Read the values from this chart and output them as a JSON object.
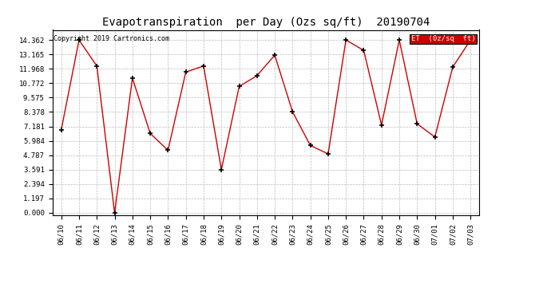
{
  "title": "Evapotranspiration  per Day (Ozs sq/ft)  20190704",
  "copyright": "Copyright 2019 Cartronics.com",
  "legend_label": "ET  (0z/sq  ft)",
  "legend_bg": "#cc0000",
  "legend_text_color": "#ffffff",
  "dates": [
    "06/10",
    "06/11",
    "06/12",
    "06/13",
    "06/14",
    "06/15",
    "06/16",
    "06/17",
    "06/18",
    "06/19",
    "06/20",
    "06/21",
    "06/22",
    "06/23",
    "06/24",
    "06/25",
    "06/26",
    "06/27",
    "06/28",
    "06/29",
    "06/30",
    "07/01",
    "07/02",
    "07/03"
  ],
  "values": [
    6.9,
    14.362,
    12.2,
    0.0,
    11.2,
    6.6,
    5.2,
    11.7,
    12.2,
    3.6,
    10.5,
    11.4,
    13.1,
    8.4,
    5.6,
    4.9,
    14.362,
    13.5,
    7.3,
    14.362,
    7.4,
    6.3,
    12.1,
    14.362
  ],
  "line_color": "#cc0000",
  "marker_color": "#000000",
  "bg_color": "#ffffff",
  "plot_bg_color": "#ffffff",
  "grid_color": "#bbbbbb",
  "yticks": [
    0.0,
    1.197,
    2.394,
    3.591,
    4.787,
    5.984,
    7.181,
    8.378,
    9.575,
    10.772,
    11.968,
    13.165,
    14.362
  ],
  "ylim": [
    -0.2,
    15.2
  ],
  "title_fontsize": 10,
  "tick_fontsize": 6.5,
  "copyright_fontsize": 6
}
